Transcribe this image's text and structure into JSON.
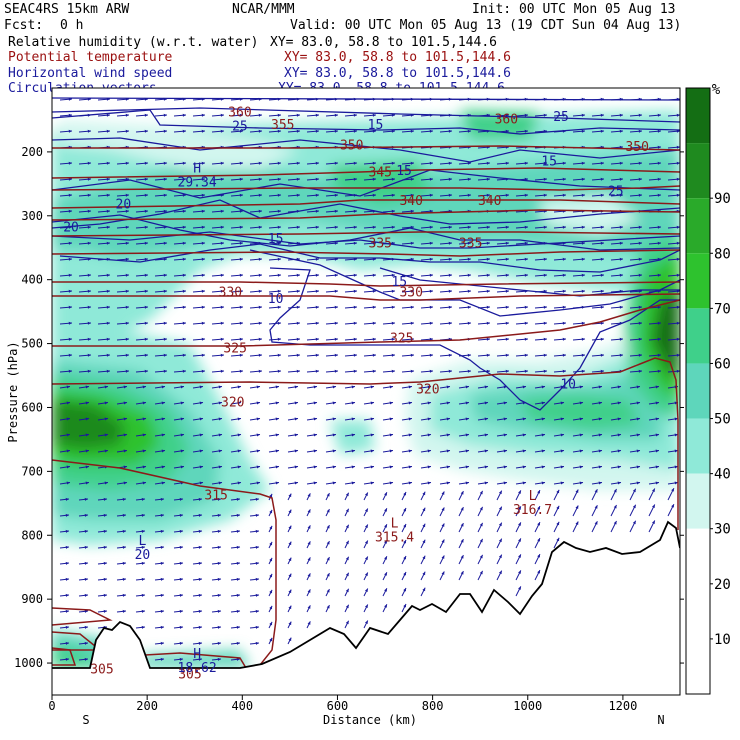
{
  "header": {
    "model": "SEAC4RS 15km ARW",
    "center": "NCAR/MMM",
    "init": "Init: 00 UTC Mon 05 Aug 13",
    "fcst_label": "Fcst:",
    "fcst_value": "0 h",
    "valid": "Valid: 00 UTC Mon 05 Aug 13 (19 CDT Sun 04 Aug 13)",
    "fields": [
      {
        "name": "Relative humidity (w.r.t. water)",
        "xy": "XY=  83.0, 58.8 to 101.5,144.6",
        "color": "#000000"
      },
      {
        "name": "Potential temperature",
        "xy": "XY=  83.0, 58.8 to 101.5,144.6",
        "color": "#9a1010"
      },
      {
        "name": "Horizontal wind speed",
        "xy": "XY=  83.0, 58.8 to 101.5,144.6",
        "color": "#1a1a9c"
      },
      {
        "name": "Circulation vectors",
        "xy": "XY=  83.0, 58.8 to 101.5,144.6",
        "color": "#1a1a9c"
      }
    ]
  },
  "chart_data": {
    "type": "heatmap",
    "xlabel": "Distance (km)",
    "ylabel": "Pressure (hPa)",
    "xlim": [
      0,
      1320
    ],
    "ylim": [
      1050,
      100
    ],
    "x_ticks": [
      0,
      200,
      400,
      600,
      800,
      1000,
      1200
    ],
    "y_ticks": [
      200,
      300,
      400,
      500,
      600,
      700,
      800,
      900,
      1000
    ],
    "end_labels": {
      "left": "S",
      "right": "N"
    },
    "colorbar": {
      "unit": "%",
      "ticks": [
        10,
        20,
        30,
        40,
        50,
        60,
        70,
        80,
        90
      ],
      "colors": [
        "#ffffff",
        "#ffffff",
        "#ffffff",
        "#d2f6ef",
        "#8fe9d8",
        "#5ed6bb",
        "#3fd08a",
        "#2ec22e",
        "#2aaa2a",
        "#1f8a1f",
        "#146e14"
      ]
    },
    "theta_labels": [
      {
        "text": "305",
        "x": 105,
        "p": 1010
      },
      {
        "text": "305",
        "x": 290,
        "p": 1018
      },
      {
        "text": "315",
        "x": 345,
        "p": 738
      },
      {
        "text": "320",
        "x": 380,
        "p": 592
      },
      {
        "text": "325",
        "x": 385,
        "p": 508
      },
      {
        "text": "325",
        "x": 735,
        "p": 492
      },
      {
        "text": "320",
        "x": 790,
        "p": 572
      },
      {
        "text": "330",
        "x": 375,
        "p": 420
      },
      {
        "text": "330",
        "x": 755,
        "p": 420
      },
      {
        "text": "335",
        "x": 690,
        "p": 343
      },
      {
        "text": "335",
        "x": 880,
        "p": 343
      },
      {
        "text": "340",
        "x": 755,
        "p": 277
      },
      {
        "text": "340",
        "x": 920,
        "p": 277
      },
      {
        "text": "345",
        "x": 690,
        "p": 232
      },
      {
        "text": "350",
        "x": 630,
        "p": 190
      },
      {
        "text": "350",
        "x": 1230,
        "p": 192
      },
      {
        "text": "355",
        "x": 485,
        "p": 158
      },
      {
        "text": "360",
        "x": 395,
        "p": 138
      },
      {
        "text": "360",
        "x": 955,
        "p": 149
      }
    ],
    "wind_labels": [
      {
        "text": "10",
        "x": 470,
        "p": 430
      },
      {
        "text": "10",
        "x": 1085,
        "p": 564
      },
      {
        "text": "15",
        "x": 470,
        "p": 336
      },
      {
        "text": "15",
        "x": 730,
        "p": 404
      },
      {
        "text": "15",
        "x": 740,
        "p": 230
      },
      {
        "text": "15",
        "x": 1045,
        "p": 215
      },
      {
        "text": "15",
        "x": 680,
        "p": 158
      },
      {
        "text": "20",
        "x": 40,
        "p": 318
      },
      {
        "text": "20",
        "x": 150,
        "p": 282
      },
      {
        "text": "25",
        "x": 395,
        "p": 160
      },
      {
        "text": "25",
        "x": 1185,
        "p": 262
      },
      {
        "text": "25",
        "x": 1070,
        "p": 145
      }
    ],
    "extrema": [
      {
        "letter": "H",
        "value": "29.34",
        "x": 305,
        "p": 232,
        "kind": "wind"
      },
      {
        "letter": "L",
        "value": "20",
        "x": 190,
        "p": 815,
        "kind": "wind"
      },
      {
        "letter": "H",
        "value": "18.62",
        "x": 305,
        "p": 992,
        "kind": "wind"
      },
      {
        "letter": "L",
        "value": "315.4",
        "x": 720,
        "p": 788,
        "kind": "theta"
      },
      {
        "letter": "L",
        "value": "316.7",
        "x": 1010,
        "p": 745,
        "kind": "theta"
      }
    ]
  }
}
